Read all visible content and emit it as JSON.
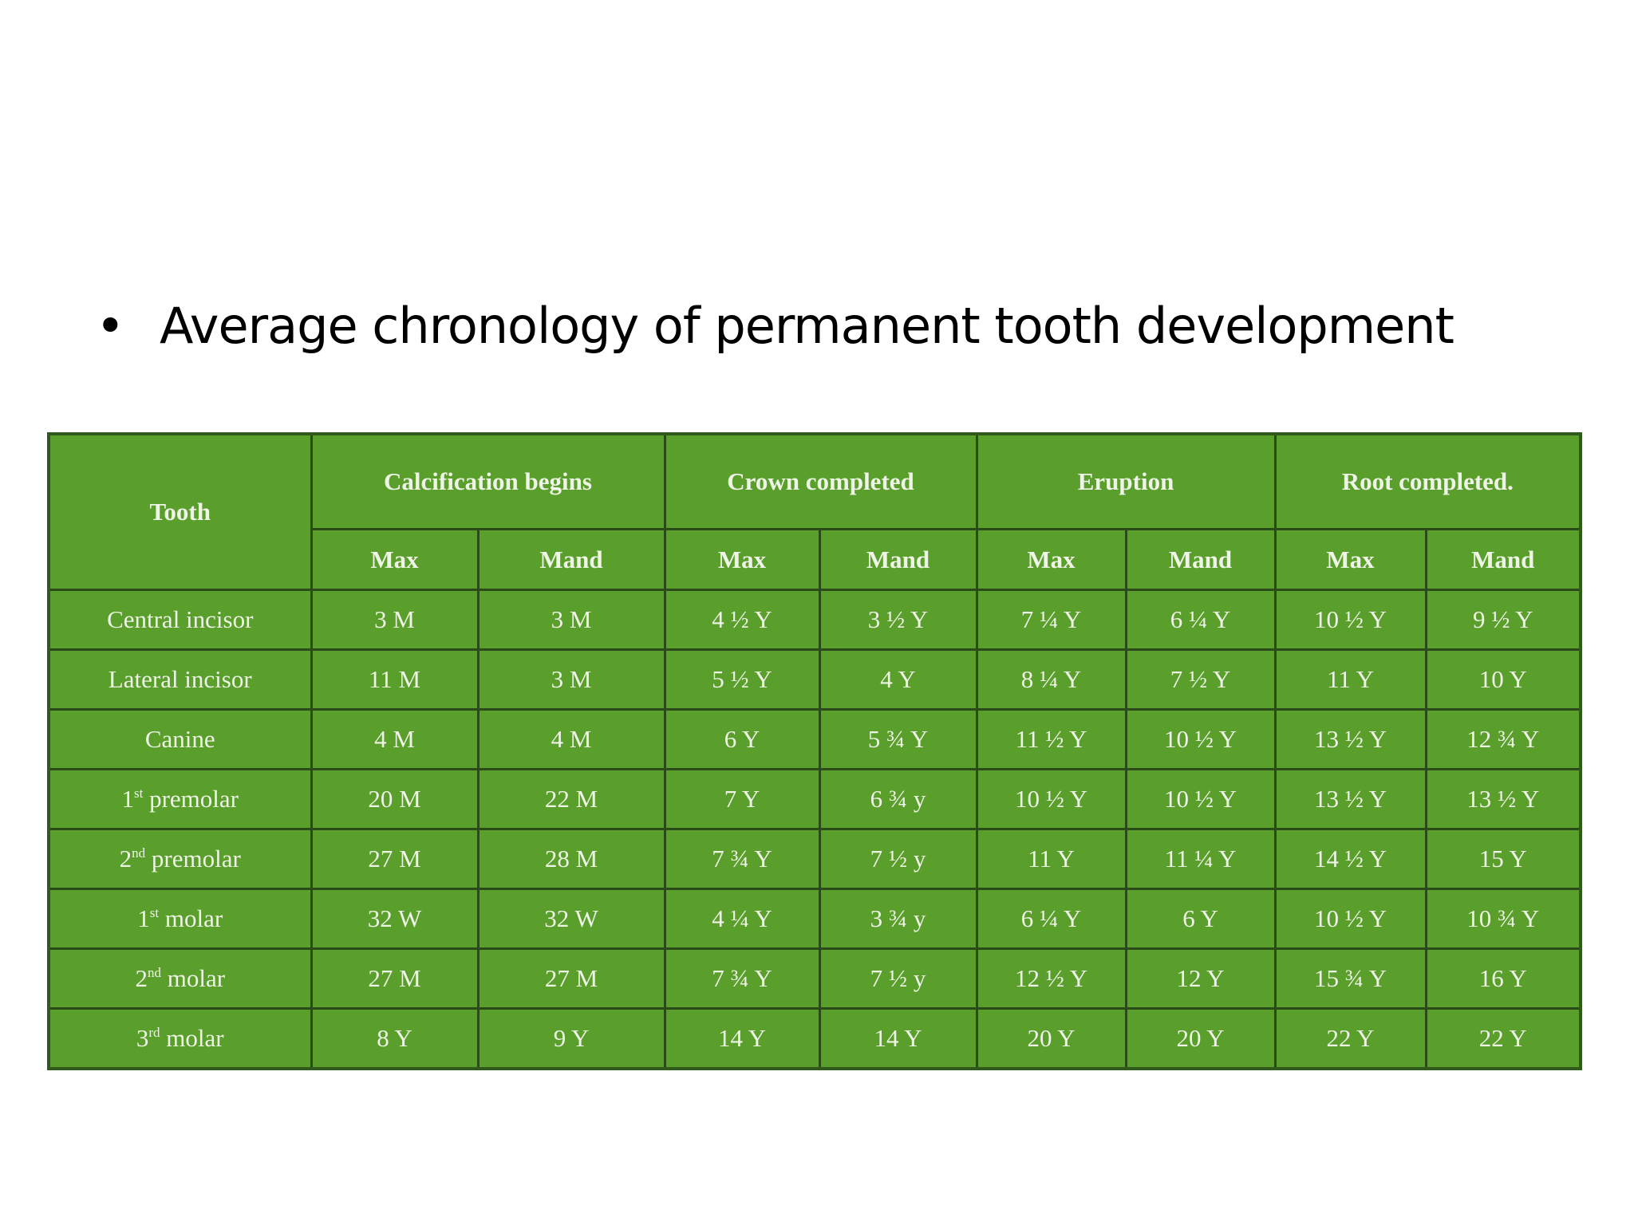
{
  "slide": {
    "bullet": "•",
    "title": "Average chronology of permanent tooth development",
    "table": {
      "header": {
        "tooth": "Tooth",
        "groups": [
          "Calcification begins",
          "Crown completed",
          "Eruption",
          "Root completed."
        ],
        "sub": [
          "Max",
          "Mand",
          "Max",
          "Mand",
          "Max",
          "Mand",
          "Max",
          "Mand"
        ]
      },
      "rows": [
        {
          "tooth": "Central incisor",
          "cells": [
            "3 M",
            "3 M",
            "4 ½ Y",
            "3 ½ Y",
            "7 ¼ Y",
            "6 ¼ Y",
            "10 ½ Y",
            "9 ½ Y"
          ]
        },
        {
          "tooth": "Lateral incisor",
          "cells": [
            "11 M",
            "3 M",
            "5 ½ Y",
            "4 Y",
            "8 ¼ Y",
            "7 ½ Y",
            "11 Y",
            "10 Y"
          ]
        },
        {
          "tooth": "Canine",
          "cells": [
            "4 M",
            "4 M",
            "6 Y",
            "5 ¾ Y",
            "11 ½ Y",
            "10 ½ Y",
            "13 ½ Y",
            "12 ¾ Y"
          ]
        },
        {
          "tooth_number": "1",
          "tooth_suffix": "st",
          "tooth": "premolar",
          "cells": [
            "20 M",
            "22 M",
            "7 Y",
            "6 ¾ y",
            "10 ½ Y",
            "10 ½ Y",
            "13 ½ Y",
            "13 ½ Y"
          ]
        },
        {
          "tooth_number": "2",
          "tooth_suffix": "nd",
          "tooth": "premolar",
          "cells": [
            "27 M",
            "28 M",
            "7 ¾ Y",
            "7 ½ y",
            "11 Y",
            "11 ¼ Y",
            "14 ½ Y",
            "15 Y"
          ]
        },
        {
          "tooth_number": "1",
          "tooth_suffix": "st",
          "tooth": "molar",
          "cells": [
            "32 W",
            "32 W",
            "4 ¼ Y",
            "3 ¾ y",
            "6 ¼ Y",
            "6 Y",
            "10 ½ Y",
            "10 ¾ Y"
          ]
        },
        {
          "tooth_number": "2",
          "tooth_suffix": "nd",
          "tooth": "molar",
          "cells": [
            "27 M",
            "27 M",
            "7 ¾ Y",
            "7 ½ y",
            "12 ½ Y",
            "12 Y",
            "15 ¾ Y",
            "16 Y"
          ]
        },
        {
          "tooth_number": "3",
          "tooth_suffix": "rd",
          "tooth": "molar",
          "cells": [
            "8 Y",
            "9 Y",
            "14 Y",
            "14 Y",
            "20 Y",
            "20 Y",
            "22 Y",
            "22 Y"
          ]
        }
      ]
    }
  }
}
